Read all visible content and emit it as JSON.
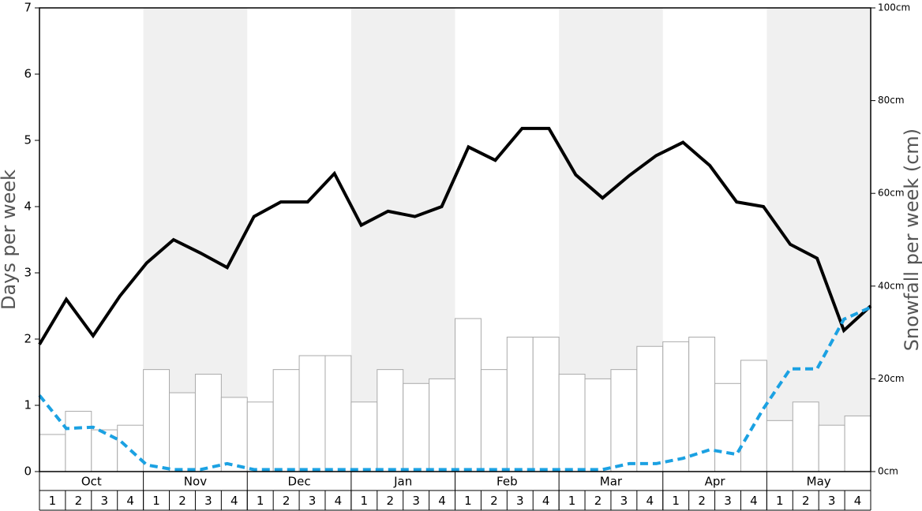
{
  "chart_data": {
    "type": "combo",
    "ylabel": "Days per week",
    "y2label": "Snowfall per week (cm)",
    "months": [
      "Oct",
      "Nov",
      "Dec",
      "Jan",
      "Feb",
      "Mar",
      "Apr",
      "May"
    ],
    "categories": [
      "1",
      "2",
      "3",
      "4",
      "1",
      "2",
      "3",
      "4",
      "1",
      "2",
      "3",
      "4",
      "1",
      "2",
      "3",
      "4",
      "1",
      "2",
      "3",
      "4",
      "1",
      "2",
      "3",
      "4",
      "1",
      "2",
      "3",
      "4",
      "1",
      "2",
      "3",
      "4"
    ],
    "ylim": [
      0,
      7
    ],
    "yticks": [
      0,
      1,
      2,
      3,
      4,
      5,
      6,
      7
    ],
    "y2lim": [
      0,
      100
    ],
    "y2ticks": [
      {
        "value": 0,
        "label": "0cm"
      },
      {
        "value": 20,
        "label": "20cm"
      },
      {
        "value": 40,
        "label": "40cm"
      },
      {
        "value": 60,
        "label": "60cm"
      },
      {
        "value": 80,
        "label": "80cm"
      },
      {
        "value": 100,
        "label": "100cm"
      }
    ],
    "band_color": "#f0f0f0",
    "series": [
      {
        "type": "bar",
        "axis": "y2",
        "color": "#ffffff",
        "edge": "#aaaaaa",
        "values": [
          8,
          13,
          9,
          10,
          22,
          17,
          21,
          16,
          15,
          22,
          25,
          25,
          15,
          22,
          19,
          20,
          33,
          22,
          29,
          29,
          21,
          20,
          22,
          27,
          28,
          29,
          19,
          24,
          11,
          15,
          10,
          12
        ]
      },
      {
        "type": "line",
        "color": "#000000",
        "dashed": false,
        "values": [
          1.92,
          2.6,
          2.05,
          2.65,
          3.15,
          3.5,
          3.3,
          3.08,
          3.85,
          4.07,
          4.07,
          4.5,
          3.72,
          3.93,
          3.85,
          4.0,
          4.9,
          4.7,
          5.18,
          5.18,
          4.48,
          4.13,
          4.47,
          4.77,
          4.97,
          4.62,
          4.07,
          4.0,
          3.43,
          3.22,
          2.13,
          2.5
        ]
      },
      {
        "type": "line",
        "color": "#1ba1e2",
        "dashed": true,
        "values": [
          1.15,
          0.65,
          0.67,
          0.47,
          0.1,
          0.03,
          0.03,
          0.12,
          0.03,
          0.03,
          0.03,
          0.03,
          0.03,
          0.03,
          0.03,
          0.03,
          0.03,
          0.03,
          0.03,
          0.03,
          0.03,
          0.03,
          0.12,
          0.12,
          0.2,
          0.33,
          0.26,
          0.95,
          1.55,
          1.55,
          2.3,
          2.48
        ]
      }
    ]
  }
}
